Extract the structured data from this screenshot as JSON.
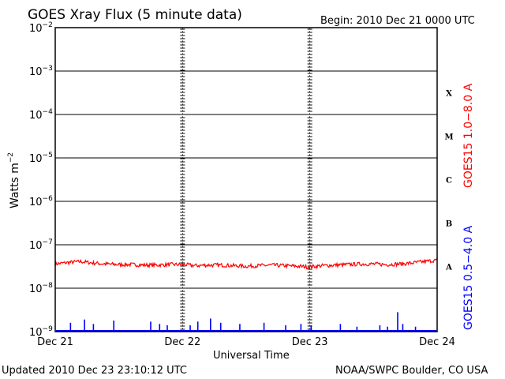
{
  "chart_data": {
    "type": "line",
    "title": "GOES Xray Flux (5 minute data)",
    "begin_label": "Begin:  2010 Dec 21 0000 UTC",
    "ylabel_main": "Watts m",
    "ylabel_sup": "−2",
    "xlabel": "Universal Time",
    "yscale": "log",
    "ylim": [
      1e-09,
      0.01
    ],
    "y_ticks": [
      {
        "base": "10",
        "exp": "−2"
      },
      {
        "base": "10",
        "exp": "−3"
      },
      {
        "base": "10",
        "exp": "−4"
      },
      {
        "base": "10",
        "exp": "−5"
      },
      {
        "base": "10",
        "exp": "−6"
      },
      {
        "base": "10",
        "exp": "−7"
      },
      {
        "base": "10",
        "exp": "−8"
      },
      {
        "base": "10",
        "exp": "−9"
      }
    ],
    "x_ticks": [
      "Dec 21",
      "Dec 22",
      "Dec 23",
      "Dec 24"
    ],
    "flare_classes": [
      "X",
      "M",
      "C",
      "B",
      "A"
    ],
    "series": [
      {
        "name": "GOES15 1.0−8.0 A",
        "color": "#ff0000",
        "x_days": [
          0.0,
          0.1,
          0.2,
          0.3,
          0.4,
          0.5,
          0.6,
          0.7,
          0.8,
          0.9,
          1.0,
          1.1,
          1.2,
          1.3,
          1.4,
          1.5,
          1.6,
          1.7,
          1.8,
          1.9,
          2.0,
          2.1,
          2.2,
          2.3,
          2.4,
          2.5,
          2.6,
          2.7,
          2.8,
          2.9,
          3.0
        ],
        "values": [
          3.6e-08,
          3.9e-08,
          4.1e-08,
          3.8e-08,
          3.6e-08,
          3.5e-08,
          3.5e-08,
          3.4e-08,
          3.4e-08,
          3.5e-08,
          3.5e-08,
          3.3e-08,
          3.4e-08,
          3.4e-08,
          3.3e-08,
          3.2e-08,
          3.3e-08,
          3.4e-08,
          3.3e-08,
          3.2e-08,
          3.1e-08,
          3.3e-08,
          3.4e-08,
          3.5e-08,
          3.6e-08,
          3.6e-08,
          3.5e-08,
          3.6e-08,
          3.8e-08,
          4.1e-08,
          4.4e-08
        ]
      },
      {
        "name": "GOES15 0.5−4.0 A",
        "color": "#0000ff",
        "baseline": 1e-09,
        "spikes": [
          {
            "x": 0.12,
            "v": 1.6e-09
          },
          {
            "x": 0.23,
            "v": 1.9e-09
          },
          {
            "x": 0.3,
            "v": 1.5e-09
          },
          {
            "x": 0.46,
            "v": 1.8e-09
          },
          {
            "x": 0.75,
            "v": 1.7e-09
          },
          {
            "x": 0.82,
            "v": 1.5e-09
          },
          {
            "x": 0.88,
            "v": 1.4e-09
          },
          {
            "x": 1.06,
            "v": 1.4e-09
          },
          {
            "x": 1.12,
            "v": 1.7e-09
          },
          {
            "x": 1.22,
            "v": 2e-09
          },
          {
            "x": 1.3,
            "v": 1.6e-09
          },
          {
            "x": 1.45,
            "v": 1.5e-09
          },
          {
            "x": 1.64,
            "v": 1.6e-09
          },
          {
            "x": 1.81,
            "v": 1.4e-09
          },
          {
            "x": 1.93,
            "v": 1.5e-09
          },
          {
            "x": 2.01,
            "v": 1.4e-09
          },
          {
            "x": 2.24,
            "v": 1.5e-09
          },
          {
            "x": 2.37,
            "v": 1.3e-09
          },
          {
            "x": 2.55,
            "v": 1.4e-09
          },
          {
            "x": 2.61,
            "v": 1.3e-09
          },
          {
            "x": 2.69,
            "v": 2.8e-09
          },
          {
            "x": 2.73,
            "v": 1.5e-09
          },
          {
            "x": 2.83,
            "v": 1.3e-09
          }
        ]
      }
    ],
    "grid": true
  },
  "footer": {
    "updated": "Updated 2010 Dec 23 23:10:12 UTC",
    "credit": "NOAA/SWPC Boulder, CO USA"
  }
}
